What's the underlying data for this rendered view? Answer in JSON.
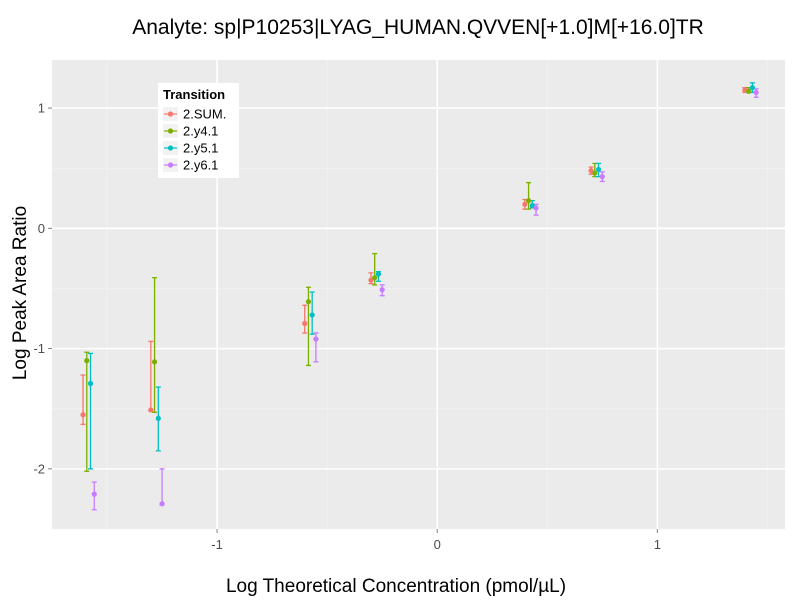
{
  "chart_data": {
    "type": "scatter",
    "title": "Analyte: sp|P10253|LYAG_HUMAN.QVVEN[+1.0]M[+16.0]TR",
    "xlabel": "Log Theoretical Concentration (pmol/µL)",
    "ylabel": "Log Peak Area Ratio",
    "xlim": [
      -1.75,
      1.58
    ],
    "ylim": [
      -2.5,
      1.4
    ],
    "x_ticks": [
      -1,
      0,
      1
    ],
    "y_ticks": [
      -2,
      -1,
      0,
      1
    ],
    "x_tick_labels": [
      "-1",
      "0",
      "1"
    ],
    "y_tick_labels": [
      "-2",
      "-1",
      "0",
      "1"
    ],
    "grid": true,
    "error_bars": true,
    "legend": {
      "title": "Transition",
      "placement": "top-left"
    },
    "series": [
      {
        "name": "2.SUM.",
        "color": "#F8766D",
        "points": [
          {
            "x": -1.609,
            "y": -1.55,
            "lo": -1.63,
            "hi": -1.22
          },
          {
            "x": -1.301,
            "y": -1.51,
            "lo": -1.52,
            "hi": -0.94
          },
          {
            "x": -0.602,
            "y": -0.79,
            "lo": -0.87,
            "hi": -0.64
          },
          {
            "x": -0.301,
            "y": -0.43,
            "lo": -0.46,
            "hi": -0.37
          },
          {
            "x": 0.398,
            "y": 0.2,
            "lo": 0.16,
            "hi": 0.24
          },
          {
            "x": 0.699,
            "y": 0.48,
            "lo": 0.45,
            "hi": 0.51
          },
          {
            "x": 1.398,
            "y": 1.15,
            "lo": 1.13,
            "hi": 1.17
          }
        ]
      },
      {
        "name": "2.y4.1",
        "color": "#7CAE00",
        "points": [
          {
            "x": -1.592,
            "y": -1.1,
            "lo": -2.02,
            "hi": -1.03
          },
          {
            "x": -1.284,
            "y": -1.11,
            "lo": -1.53,
            "hi": -0.41
          },
          {
            "x": -0.585,
            "y": -0.61,
            "lo": -1.14,
            "hi": -0.49
          },
          {
            "x": -0.284,
            "y": -0.41,
            "lo": -0.47,
            "hi": -0.21
          },
          {
            "x": 0.415,
            "y": 0.23,
            "lo": 0.16,
            "hi": 0.38
          },
          {
            "x": 0.716,
            "y": 0.46,
            "lo": 0.43,
            "hi": 0.54
          },
          {
            "x": 1.415,
            "y": 1.14,
            "lo": 1.13,
            "hi": 1.17
          }
        ]
      },
      {
        "name": "2.y5.1",
        "color": "#00BFC4",
        "points": [
          {
            "x": -1.575,
            "y": -1.29,
            "lo": -2.0,
            "hi": -1.04
          },
          {
            "x": -1.267,
            "y": -1.58,
            "lo": -1.85,
            "hi": -1.32
          },
          {
            "x": -0.568,
            "y": -0.72,
            "lo": -0.88,
            "hi": -0.53
          },
          {
            "x": -0.267,
            "y": -0.38,
            "lo": -0.44,
            "hi": -0.36
          },
          {
            "x": 0.432,
            "y": 0.19,
            "lo": 0.17,
            "hi": 0.23
          },
          {
            "x": 0.733,
            "y": 0.49,
            "lo": 0.43,
            "hi": 0.54
          },
          {
            "x": 1.432,
            "y": 1.17,
            "lo": 1.13,
            "hi": 1.21
          }
        ]
      },
      {
        "name": "2.y6.1",
        "color": "#C77CFF",
        "points": [
          {
            "x": -1.558,
            "y": -2.21,
            "lo": -2.34,
            "hi": -2.11
          },
          {
            "x": -1.25,
            "y": -2.29,
            "lo": -2.3,
            "hi": -2.0
          },
          {
            "x": -0.551,
            "y": -0.92,
            "lo": -1.11,
            "hi": -0.87
          },
          {
            "x": -0.25,
            "y": -0.51,
            "lo": -0.56,
            "hi": -0.47
          },
          {
            "x": 0.449,
            "y": 0.17,
            "lo": 0.11,
            "hi": 0.2
          },
          {
            "x": 0.75,
            "y": 0.43,
            "lo": 0.39,
            "hi": 0.47
          },
          {
            "x": 1.449,
            "y": 1.13,
            "lo": 1.09,
            "hi": 1.16
          }
        ]
      }
    ]
  }
}
